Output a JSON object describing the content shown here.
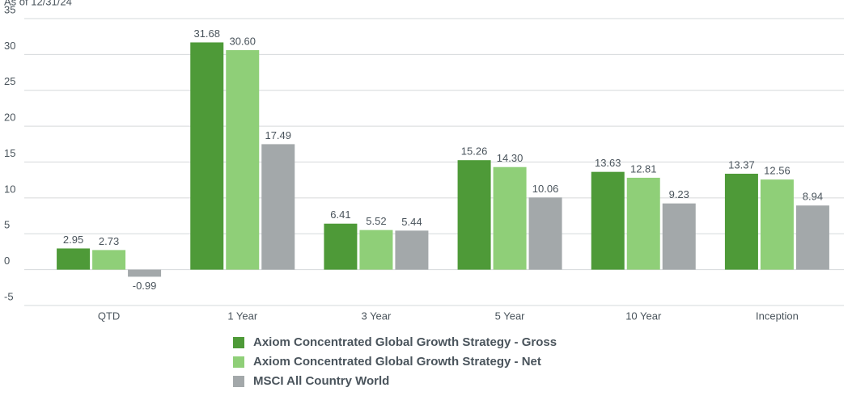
{
  "chart_data": {
    "type": "bar",
    "subtitle": "As of 12/31/24",
    "categories": [
      "QTD",
      "1 Year",
      "3 Year",
      "5 Year",
      "10 Year",
      "Inception"
    ],
    "series": [
      {
        "name": "Axiom Concentrated Global Growth Strategy - Gross",
        "color": "#4e9a38",
        "values": [
          2.95,
          31.68,
          6.41,
          15.26,
          13.63,
          13.37
        ],
        "value_labels": [
          "2.95",
          "31.68",
          "6.41",
          "15.26",
          "13.63",
          "13.37"
        ]
      },
      {
        "name": "Axiom Concentrated Global Growth Strategy - Net",
        "color": "#8fcf78",
        "values": [
          2.73,
          30.6,
          5.52,
          14.3,
          12.81,
          12.56
        ],
        "value_labels": [
          "2.73",
          "30.60",
          "5.52",
          "14.30",
          "12.81",
          "12.56"
        ]
      },
      {
        "name": "MSCI All Country World",
        "color": "#a3a8aa",
        "values": [
          -0.99,
          17.49,
          5.44,
          10.06,
          9.23,
          8.94
        ],
        "value_labels": [
          "-0.99",
          "17.49",
          "5.44",
          "10.06",
          "9.23",
          "8.94"
        ]
      }
    ],
    "ylim": [
      -5,
      35
    ],
    "yticks": [
      -5,
      0,
      5,
      10,
      15,
      20,
      25,
      30,
      35
    ],
    "grid": true
  }
}
